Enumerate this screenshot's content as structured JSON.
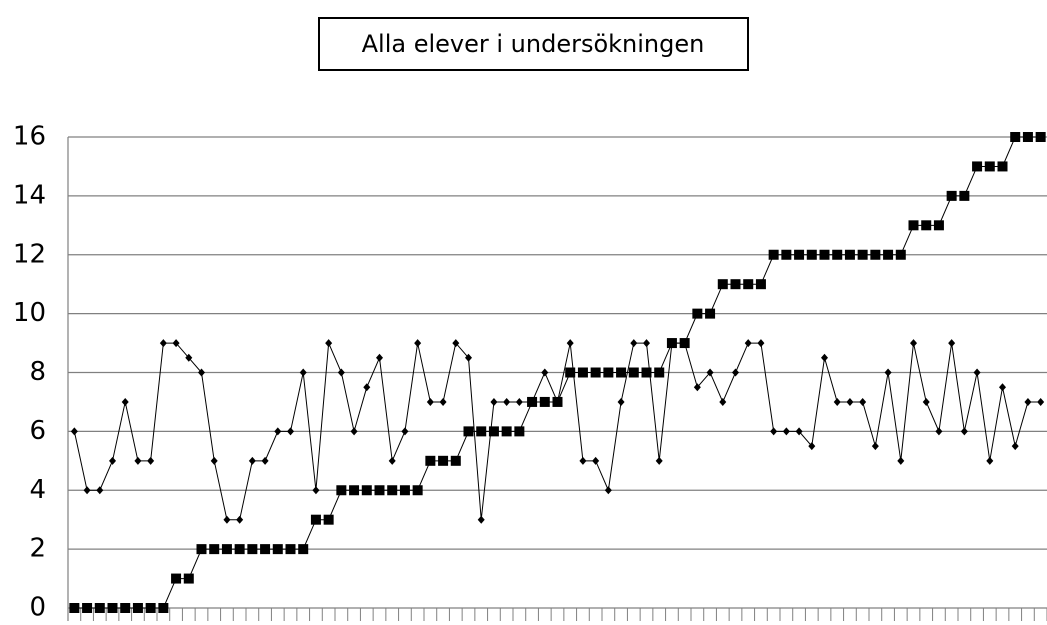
{
  "chart_data": {
    "type": "line",
    "title": "Alla elever i undersökningen",
    "categories": [
      null,
      null,
      null,
      null,
      null,
      null,
      null,
      null,
      null,
      null,
      null,
      null,
      null,
      null,
      null,
      null,
      null,
      null,
      null,
      null,
      null,
      null,
      null,
      null,
      null,
      null,
      null,
      null,
      null,
      null,
      null,
      null,
      null,
      null,
      null,
      null,
      null,
      null,
      null,
      null,
      null,
      null,
      null,
      null,
      null,
      null,
      null,
      null,
      null,
      null,
      null,
      null,
      null,
      null,
      null,
      null,
      null,
      null,
      null,
      null,
      null,
      null,
      null,
      null,
      null,
      null,
      null,
      null,
      null,
      null,
      null,
      null,
      null,
      null,
      null,
      null,
      null
    ],
    "series": [
      {
        "color": "#000000",
        "marker": "square",
        "values": [
          0,
          0,
          0,
          0,
          0,
          0,
          0,
          0,
          1,
          1,
          2,
          2,
          2,
          2,
          2,
          2,
          2,
          2,
          2,
          3,
          3,
          4,
          4,
          4,
          4,
          4,
          4,
          4,
          5,
          5,
          5,
          6,
          6,
          6,
          6,
          6,
          7,
          7,
          7,
          8,
          8,
          8,
          8,
          8,
          8,
          8,
          8,
          9,
          9,
          10,
          10,
          11,
          11,
          11,
          11,
          12,
          12,
          12,
          12,
          12,
          12,
          12,
          12,
          12,
          12,
          12,
          13,
          13,
          13,
          14,
          14,
          15,
          15,
          15,
          16,
          16,
          16
        ]
      },
      {
        "color": "#000000",
        "marker": "diamond",
        "values": [
          6,
          4,
          4,
          5,
          7,
          5,
          5,
          9,
          9,
          8.5,
          8,
          5,
          3,
          3,
          5,
          5,
          6,
          6,
          8,
          4,
          9,
          8,
          6,
          7.5,
          8.5,
          5,
          6,
          9,
          7,
          7,
          9,
          8.5,
          3,
          7,
          7,
          7,
          7,
          8,
          7,
          9,
          5,
          5,
          4,
          7,
          9,
          9,
          5,
          9,
          9,
          7.5,
          8,
          7,
          8,
          9,
          9,
          6,
          6,
          6,
          5.5,
          8.5,
          7,
          7,
          7,
          5.5,
          8,
          5,
          9,
          7,
          6,
          9,
          6,
          8,
          5,
          7.5,
          5.5,
          7,
          7
        ]
      }
    ],
    "ylim": [
      0,
      16
    ],
    "yticks": [
      0,
      2,
      4,
      6,
      8,
      10,
      12,
      14,
      16
    ],
    "grid": true
  }
}
